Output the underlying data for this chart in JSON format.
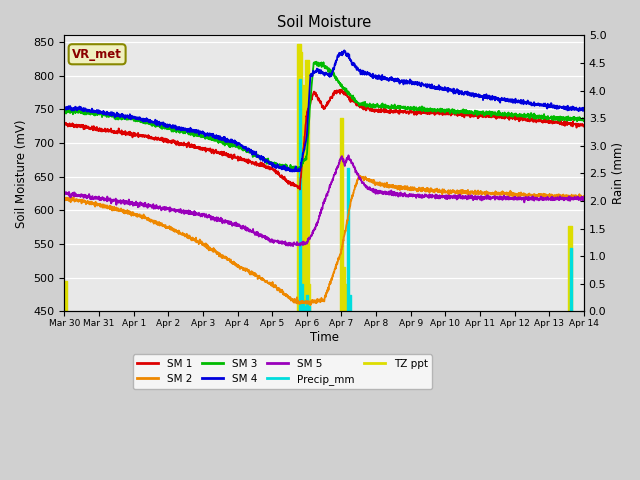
{
  "title": "Soil Moisture",
  "xlabel": "Time",
  "ylabel_left": "Soil Moisture (mV)",
  "ylabel_right": "Rain (mm)",
  "ylim_left": [
    450,
    860
  ],
  "ylim_right": [
    0.0,
    5.0
  ],
  "yticks_left": [
    450,
    500,
    550,
    600,
    650,
    700,
    750,
    800,
    850
  ],
  "yticks_right": [
    0.0,
    0.5,
    1.0,
    1.5,
    2.0,
    2.5,
    3.0,
    3.5,
    4.0,
    4.5,
    5.0
  ],
  "facecolor": "#e8e8e8",
  "fig_facecolor": "#d0d0d0",
  "vr_met_label": "VR_met",
  "colors": {
    "SM1": "#dd0000",
    "SM2": "#ee8800",
    "SM3": "#00bb00",
    "SM4": "#0000dd",
    "SM5": "#9900bb",
    "Precip": "#00dddd",
    "TZ": "#dddd00"
  },
  "xtick_labels": [
    "Mar 30",
    "Mar 31",
    "Apr 1",
    "Apr 2",
    "Apr 3",
    "Apr 4",
    "Apr 5",
    "Apr 6",
    "Apr 7",
    "Apr 8",
    "Apr 9",
    "Apr 10",
    "Apr 11",
    "Apr 12",
    "Apr 13",
    "Apr 14"
  ],
  "n_days": 15
}
